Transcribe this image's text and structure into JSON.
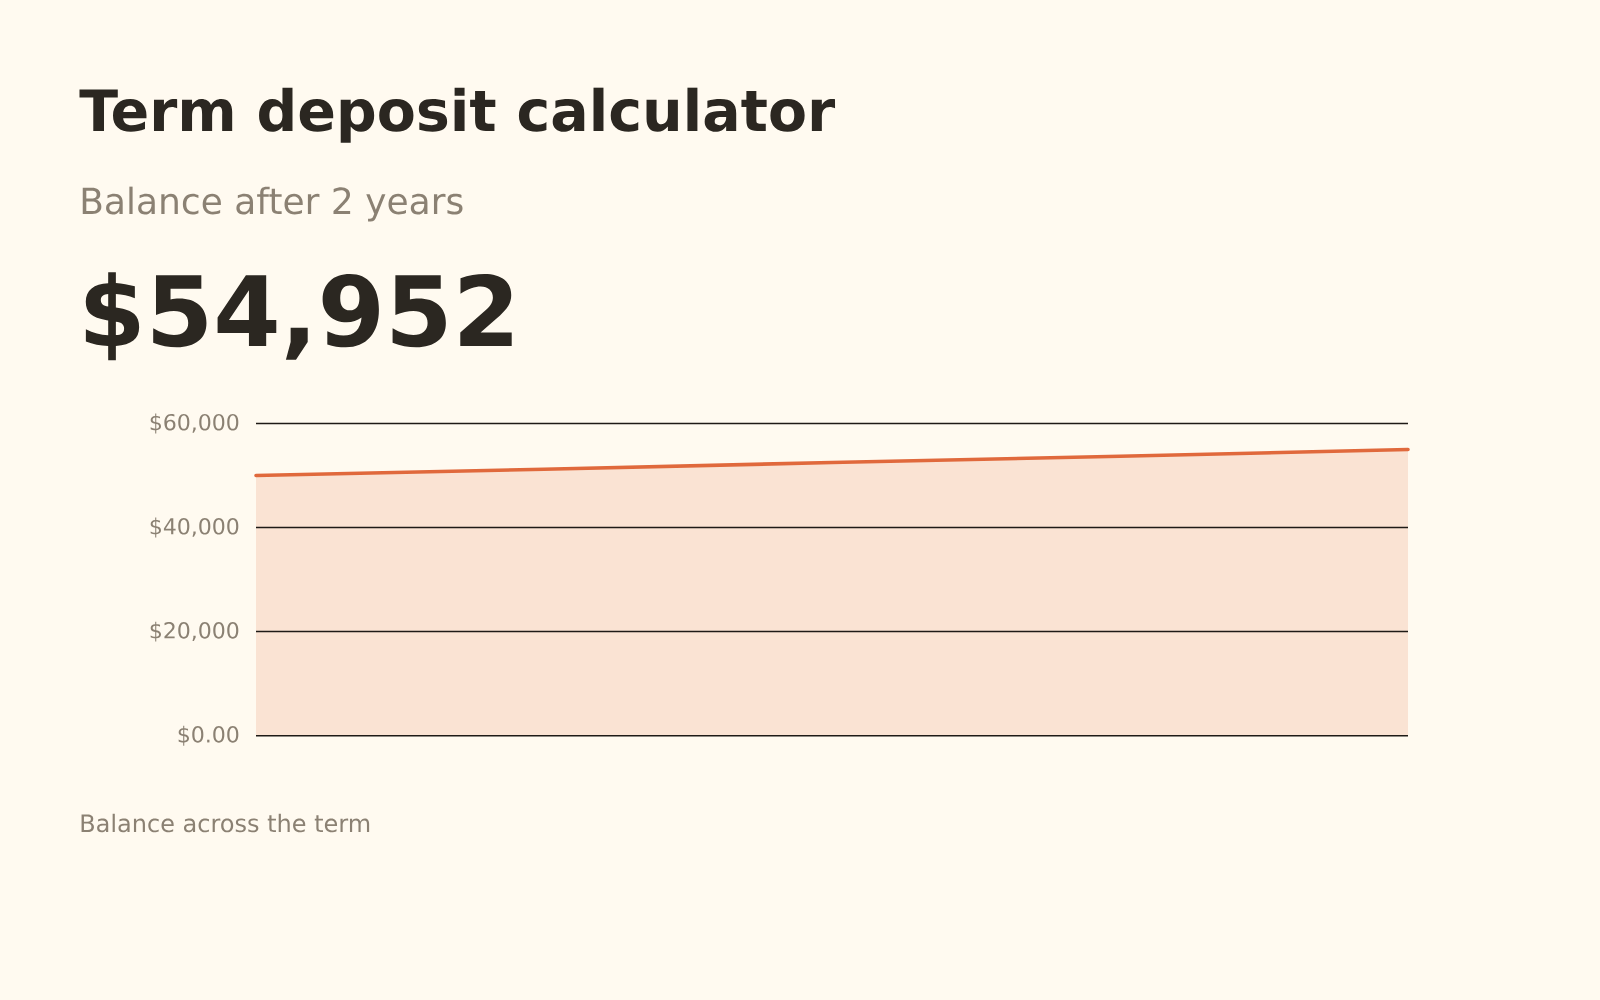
{
  "chart_data": {
    "type": "area",
    "title": "Term deposit calculator",
    "subtitle": "Balance after 2 years",
    "annotations": [
      "$54,952",
      "Balance across the term"
    ],
    "categories": [
      null,
      null,
      null,
      null,
      null
    ],
    "values": [
      50000,
      51200,
      52500,
      53700,
      55000
    ],
    "color": "#e0693c",
    "ylim": [
      0,
      60000
    ],
    "yticks": [
      {
        "value": 0,
        "label": "$0.00"
      },
      {
        "value": 20000,
        "label": "$20,000"
      },
      {
        "value": 40000,
        "label": "$40,000"
      },
      {
        "value": 60000,
        "label": "$60,000"
      }
    ],
    "grid": "y",
    "tick_labels": "y"
  }
}
